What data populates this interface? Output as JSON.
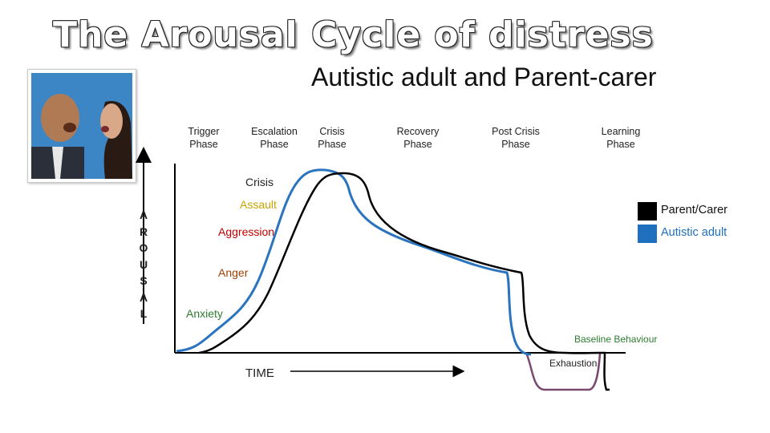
{
  "title": "The Arousal Cycle of distress",
  "subtitle": "Autistic adult and Parent-carer",
  "photo": {
    "description_icon": "arguing-couple-photo-icon"
  },
  "phases": [
    {
      "line1": "Trigger",
      "line2": "Phase"
    },
    {
      "line1": "Escalation",
      "line2": "Phase"
    },
    {
      "line1": "Crisis",
      "line2": "Phase"
    },
    {
      "line1": "Recovery",
      "line2": "Phase"
    },
    {
      "line1": "Post Crisis",
      "line2": "Phase"
    },
    {
      "line1": "Learning",
      "line2": "Phase"
    }
  ],
  "levels": {
    "crisis": "Crisis",
    "assault": "Assault",
    "aggression": "Aggression",
    "anger": "Anger",
    "anxiety": "Anxiety",
    "baseline": "Baseline Behaviour",
    "exhaustion": "Exhaustion"
  },
  "y_axis_letters": [
    "A",
    "R",
    "O",
    "U",
    "S",
    "A",
    "L"
  ],
  "x_axis_label": "TIME",
  "legend": [
    {
      "label": "Parent/Carer",
      "color": "#000000"
    },
    {
      "label": "Autistic adult",
      "color": "#1f6fbf"
    }
  ],
  "colors": {
    "parent_curve": "#000000",
    "adult_curve": "#2a74bf",
    "exhaustion_curve": "#7a4a6e",
    "label_gold": "#c9a400",
    "label_red": "#c00000",
    "label_anger": "#a04000",
    "label_anxiety": "#2e7d32",
    "label_green": "#2e7d32",
    "label_adult_blue": "#1f6fbf"
  }
}
